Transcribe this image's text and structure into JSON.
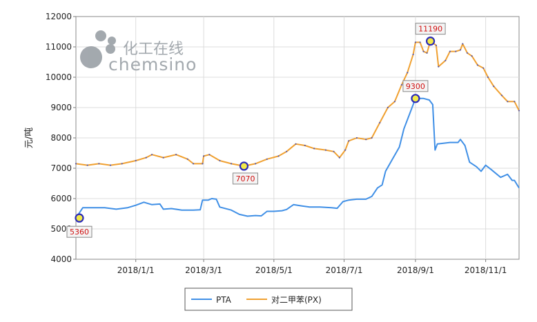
{
  "chart_data": {
    "type": "line",
    "watermark": {
      "cn": "化工在线",
      "en": "chemsino"
    },
    "ylabel": "元/吨",
    "ylim": [
      4000,
      12000
    ],
    "yticks": [
      4000,
      5000,
      6000,
      7000,
      8000,
      9000,
      10000,
      11000,
      12000
    ],
    "xlim": [
      "2017-11-10",
      "2018-11-30"
    ],
    "xticks": [
      {
        "date": "2018-01-01",
        "label": "2018/1/1"
      },
      {
        "date": "2018-03-01",
        "label": "2018/3/1"
      },
      {
        "date": "2018-05-01",
        "label": "2018/5/1"
      },
      {
        "date": "2018-07-01",
        "label": "2018/7/1"
      },
      {
        "date": "2018-09-01",
        "label": "2018/9/1"
      },
      {
        "date": "2018-11-01",
        "label": "2018/11/1"
      }
    ],
    "grid": true,
    "legend_position": "bottom",
    "series": [
      {
        "name": "PTA",
        "color": "#3f8fe6",
        "points": [
          [
            "2017-11-10",
            5360
          ],
          [
            "2017-11-16",
            5700
          ],
          [
            "2017-11-25",
            5700
          ],
          [
            "2017-12-05",
            5700
          ],
          [
            "2017-12-15",
            5650
          ],
          [
            "2017-12-25",
            5700
          ],
          [
            "2018-01-01",
            5780
          ],
          [
            "2018-01-08",
            5880
          ],
          [
            "2018-01-15",
            5800
          ],
          [
            "2018-01-22",
            5820
          ],
          [
            "2018-01-25",
            5650
          ],
          [
            "2018-02-01",
            5670
          ],
          [
            "2018-02-10",
            5620
          ],
          [
            "2018-02-20",
            5620
          ],
          [
            "2018-02-26",
            5630
          ],
          [
            "2018-02-28",
            5950
          ],
          [
            "2018-03-05",
            5950
          ],
          [
            "2018-03-08",
            6000
          ],
          [
            "2018-03-12",
            5980
          ],
          [
            "2018-03-15",
            5720
          ],
          [
            "2018-03-25",
            5620
          ],
          [
            "2018-04-01",
            5480
          ],
          [
            "2018-04-08",
            5420
          ],
          [
            "2018-04-15",
            5440
          ],
          [
            "2018-04-20",
            5430
          ],
          [
            "2018-04-25",
            5580
          ],
          [
            "2018-05-01",
            5580
          ],
          [
            "2018-05-08",
            5600
          ],
          [
            "2018-05-12",
            5640
          ],
          [
            "2018-05-18",
            5800
          ],
          [
            "2018-05-25",
            5760
          ],
          [
            "2018-06-01",
            5720
          ],
          [
            "2018-06-10",
            5720
          ],
          [
            "2018-06-20",
            5700
          ],
          [
            "2018-06-25",
            5680
          ],
          [
            "2018-06-30",
            5900
          ],
          [
            "2018-07-05",
            5950
          ],
          [
            "2018-07-12",
            5980
          ],
          [
            "2018-07-20",
            5980
          ],
          [
            "2018-07-25",
            6070
          ],
          [
            "2018-07-30",
            6350
          ],
          [
            "2018-08-03",
            6450
          ],
          [
            "2018-08-06",
            6900
          ],
          [
            "2018-08-12",
            7300
          ],
          [
            "2018-08-18",
            7700
          ],
          [
            "2018-08-22",
            8300
          ],
          [
            "2018-08-28",
            8900
          ],
          [
            "2018-09-01",
            9300
          ],
          [
            "2018-09-08",
            9300
          ],
          [
            "2018-09-13",
            9250
          ],
          [
            "2018-09-16",
            9100
          ],
          [
            "2018-09-18",
            7600
          ],
          [
            "2018-09-20",
            7800
          ],
          [
            "2018-10-01",
            7850
          ],
          [
            "2018-10-08",
            7850
          ],
          [
            "2018-10-10",
            7950
          ],
          [
            "2018-10-14",
            7750
          ],
          [
            "2018-10-18",
            7200
          ],
          [
            "2018-10-24",
            7050
          ],
          [
            "2018-10-28",
            6900
          ],
          [
            "2018-11-01",
            7100
          ],
          [
            "2018-11-06",
            6950
          ],
          [
            "2018-11-14",
            6700
          ],
          [
            "2018-11-20",
            6800
          ],
          [
            "2018-11-24",
            6600
          ],
          [
            "2018-11-26",
            6600
          ],
          [
            "2018-11-30",
            6350
          ]
        ]
      },
      {
        "name": "对二甲苯(PX)",
        "color": "#f0a030",
        "points": [
          [
            "2017-11-10",
            7150
          ],
          [
            "2017-11-20",
            7100
          ],
          [
            "2017-11-30",
            7150
          ],
          [
            "2017-12-10",
            7100
          ],
          [
            "2017-12-20",
            7150
          ],
          [
            "2018-01-01",
            7250
          ],
          [
            "2018-01-10",
            7350
          ],
          [
            "2018-01-15",
            7450
          ],
          [
            "2018-01-25",
            7350
          ],
          [
            "2018-02-05",
            7450
          ],
          [
            "2018-02-15",
            7300
          ],
          [
            "2018-02-20",
            7150
          ],
          [
            "2018-02-28",
            7150
          ],
          [
            "2018-03-01",
            7400
          ],
          [
            "2018-03-06",
            7450
          ],
          [
            "2018-03-15",
            7250
          ],
          [
            "2018-03-25",
            7150
          ],
          [
            "2018-04-05",
            7070
          ],
          [
            "2018-04-15",
            7150
          ],
          [
            "2018-04-25",
            7300
          ],
          [
            "2018-05-05",
            7400
          ],
          [
            "2018-05-12",
            7550
          ],
          [
            "2018-05-20",
            7800
          ],
          [
            "2018-05-28",
            7750
          ],
          [
            "2018-06-05",
            7650
          ],
          [
            "2018-06-15",
            7600
          ],
          [
            "2018-06-22",
            7550
          ],
          [
            "2018-06-27",
            7350
          ],
          [
            "2018-07-02",
            7600
          ],
          [
            "2018-07-05",
            7900
          ],
          [
            "2018-07-12",
            8000
          ],
          [
            "2018-07-20",
            7950
          ],
          [
            "2018-07-25",
            8000
          ],
          [
            "2018-08-01",
            8500
          ],
          [
            "2018-08-08",
            9000
          ],
          [
            "2018-08-14",
            9200
          ],
          [
            "2018-08-20",
            9750
          ],
          [
            "2018-08-25",
            10150
          ],
          [
            "2018-08-30",
            10750
          ],
          [
            "2018-09-01",
            11150
          ],
          [
            "2018-09-05",
            11150
          ],
          [
            "2018-09-08",
            10850
          ],
          [
            "2018-09-11",
            10800
          ],
          [
            "2018-09-14",
            11190
          ],
          [
            "2018-09-19",
            11050
          ],
          [
            "2018-09-21",
            10350
          ],
          [
            "2018-09-27",
            10550
          ],
          [
            "2018-10-01",
            10850
          ],
          [
            "2018-10-06",
            10850
          ],
          [
            "2018-10-10",
            10900
          ],
          [
            "2018-10-12",
            11100
          ],
          [
            "2018-10-16",
            10800
          ],
          [
            "2018-10-20",
            10700
          ],
          [
            "2018-10-25",
            10400
          ],
          [
            "2018-10-30",
            10300
          ],
          [
            "2018-11-03",
            10000
          ],
          [
            "2018-11-08",
            9700
          ],
          [
            "2018-11-15",
            9400
          ],
          [
            "2018-11-20",
            9200
          ],
          [
            "2018-11-26",
            9200
          ],
          [
            "2018-11-30",
            8900
          ]
        ]
      }
    ],
    "annotations": [
      {
        "series": "PTA",
        "date": "2017-11-13",
        "value": 5360,
        "label": "5360"
      },
      {
        "series": "对二甲苯(PX)",
        "date": "2018-04-05",
        "value": 7070,
        "label": "7070"
      },
      {
        "series": "PTA",
        "date": "2018-09-01",
        "value": 9300,
        "label": "9300"
      },
      {
        "series": "对二甲苯(PX)",
        "date": "2018-09-14",
        "value": 11190,
        "label": "11190"
      }
    ]
  }
}
